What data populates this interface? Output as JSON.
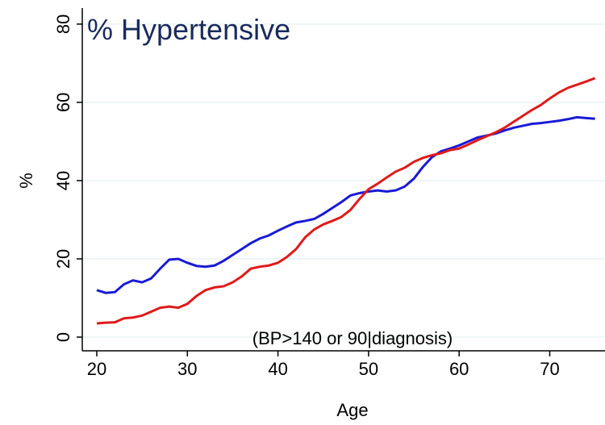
{
  "chart_data": {
    "type": "line",
    "title": "% Hypertensive",
    "annotation": "(BP>140 or 90|diagnosis)",
    "x_label": "Age",
    "y_label": "%",
    "x": [
      20,
      21,
      22,
      23,
      24,
      25,
      26,
      27,
      28,
      29,
      30,
      31,
      32,
      33,
      34,
      35,
      36,
      37,
      38,
      39,
      40,
      41,
      42,
      43,
      44,
      45,
      46,
      47,
      48,
      49,
      50,
      51,
      52,
      53,
      54,
      55,
      56,
      57,
      58,
      59,
      60,
      61,
      62,
      63,
      64,
      65,
      66,
      67,
      68,
      69,
      70,
      71,
      72,
      73,
      74,
      75
    ],
    "series": [
      {
        "color": "#1a1ad6",
        "values": [
          12,
          11.3,
          11.5,
          13.5,
          14.5,
          14,
          15,
          17.5,
          19.8,
          20,
          19,
          18.2,
          18,
          18.3,
          19.5,
          21,
          22.5,
          24,
          25.2,
          26,
          27.2,
          28.3,
          29.3,
          29.7,
          30.2,
          31.5,
          33,
          34.5,
          36.2,
          36.8,
          37.2,
          37.5,
          37.2,
          37.5,
          38.5,
          40.5,
          43.5,
          46,
          47.5,
          48.2,
          49,
          50,
          51,
          51.5,
          52,
          52.8,
          53.5,
          54,
          54.5,
          54.7,
          55,
          55.3,
          55.7,
          56.2,
          56,
          55.8
        ]
      },
      {
        "color": "#e01a1a",
        "values": [
          3.5,
          3.7,
          3.8,
          4.8,
          5,
          5.5,
          6.5,
          7.5,
          7.8,
          7.5,
          8.5,
          10.5,
          12,
          12.7,
          13,
          14,
          15.5,
          17.5,
          18,
          18.3,
          19,
          20.5,
          22.5,
          25.5,
          27.5,
          28.8,
          29.7,
          30.7,
          32.5,
          35.3,
          37.8,
          39.2,
          40.8,
          42.3,
          43.3,
          44.8,
          45.8,
          46.5,
          47,
          47.8,
          48.2,
          49.2,
          50.3,
          51.3,
          52.3,
          53.5,
          55,
          56.5,
          58,
          59.3,
          61,
          62.5,
          63.7,
          64.5,
          65.3,
          66.2
        ]
      }
    ],
    "xlim": [
      18.4,
      76.1
    ],
    "ylim": [
      -3.5,
      84.1
    ],
    "xticks": [
      20,
      30,
      40,
      50,
      60,
      70
    ],
    "yticks": [
      0,
      20,
      40,
      60,
      80
    ],
    "grid": true
  }
}
